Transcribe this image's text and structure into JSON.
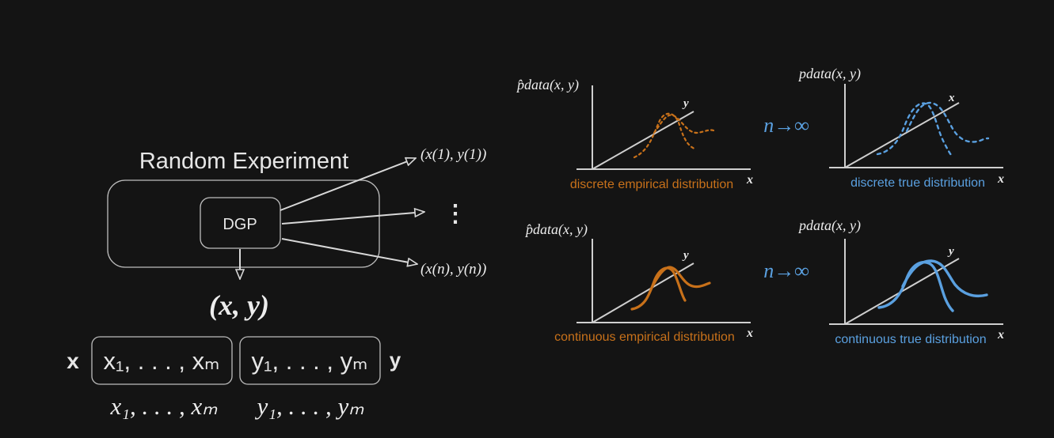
{
  "left": {
    "experiment_title": "Random Experiment",
    "dgp_label": "DGP",
    "sample_first": "(x(1), y(1))",
    "sample_dots": "⋮",
    "sample_last": "(x(n), y(n))",
    "pair": "(x, y)",
    "x_label": "x",
    "y_label": "y",
    "x_box": "x₁, . . . , xₘ",
    "y_box": "y₁, . . . , yₘ",
    "x_seq": "x₁, . . . , xₘ",
    "y_seq": "y₁, . . . , yₘ"
  },
  "right": {
    "limit_label": "n→∞",
    "panels": [
      {
        "density": "p̂data(x, y)",
        "caption": "discrete empirical distribution",
        "axis_x": "x",
        "axis_y": "y",
        "color": "#c8711a",
        "style": "dotted"
      },
      {
        "density": "pdata(x, y)",
        "caption": "discrete true distribution",
        "axis_x": "x",
        "axis_y": "x",
        "color": "#5aa0e0",
        "style": "dotted"
      },
      {
        "density": "p̂data(x, y)",
        "caption": "continuous empirical distribution",
        "axis_x": "x",
        "axis_y": "y",
        "color": "#c8711a",
        "style": "solid"
      },
      {
        "density": "pdata(x, y)",
        "caption": "continuous true distribution",
        "axis_x": "x",
        "axis_y": "y",
        "color": "#5aa0e0",
        "style": "solid"
      }
    ]
  }
}
